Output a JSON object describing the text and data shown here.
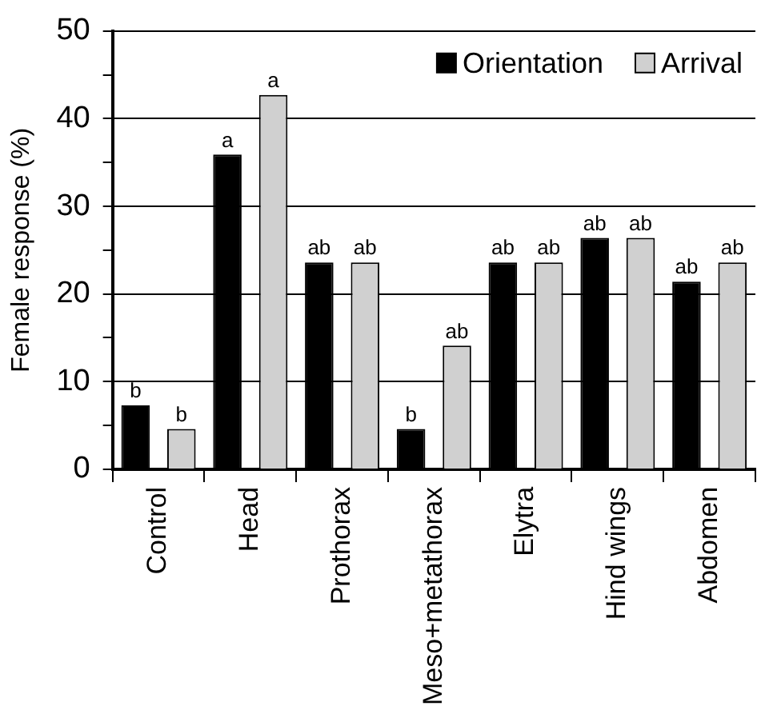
{
  "chart_data": {
    "type": "bar",
    "ylabel": "Female response (%)",
    "categories": [
      "Control",
      "Head",
      "Prothorax",
      "Meso+metathorax",
      "Elytra",
      "Hind wings",
      "Abdomen"
    ],
    "series": [
      {
        "name": "Orientation",
        "color": "#000000",
        "values": [
          7.3,
          35.9,
          23.6,
          4.6,
          23.6,
          26.4,
          21.4
        ],
        "value_labels": [
          "b",
          "a",
          "ab",
          "b",
          "ab",
          "ab",
          "ab"
        ]
      },
      {
        "name": "Arrival",
        "color": "#d0d0d0",
        "values": [
          4.6,
          42.7,
          23.6,
          14.1,
          23.6,
          26.4,
          23.6
        ],
        "value_labels": [
          "b",
          "a",
          "ab",
          "ab",
          "ab",
          "ab",
          "ab"
        ]
      }
    ],
    "ylim": [
      0,
      50
    ],
    "yticks": [
      0,
      {
        "value": 5,
        "label": null
      },
      10,
      {
        "value": 15,
        "label": null
      },
      20,
      {
        "value": 25,
        "label": null
      },
      30,
      {
        "value": 35,
        "label": null
      },
      40,
      {
        "value": 45,
        "label": null
      },
      50
    ],
    "grid": "y",
    "legend": "top right"
  }
}
